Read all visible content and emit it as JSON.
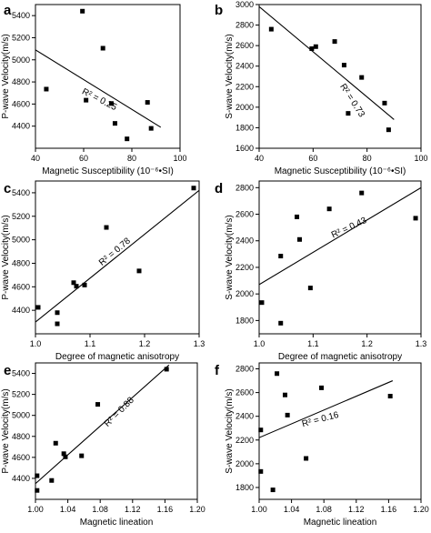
{
  "chart_data": [
    {
      "type": "scatter",
      "panel_label": "a",
      "xlabel": "Magnetic Susceptibility (10⁻⁶•SI)",
      "ylabel": "P-wave Velocity(m/s)",
      "xlim": [
        40,
        100
      ],
      "ylim": [
        4200,
        5500
      ],
      "xticks": [
        "40",
        "60",
        "80",
        "100"
      ],
      "yticks": [
        "4400",
        "4600",
        "4800",
        "5000",
        "5200",
        "5400"
      ],
      "points": [
        [
          44.5,
          4735
        ],
        [
          59.5,
          5440
        ],
        [
          61,
          4635
        ],
        [
          68,
          5105
        ],
        [
          71.5,
          4605
        ],
        [
          73,
          4425
        ],
        [
          78,
          4285
        ],
        [
          86.5,
          4615
        ],
        [
          88,
          4380
        ]
      ],
      "fit_line": [
        [
          40,
          5090
        ],
        [
          92,
          4390
        ]
      ],
      "annotation": "R² = 0.25"
    },
    {
      "type": "scatter",
      "panel_label": "b",
      "xlabel": "Magnetic Susceptibility (10⁻⁶•SI)",
      "ylabel": "S-wave Velocity(m/s)",
      "xlim": [
        40,
        100
      ],
      "ylim": [
        1600,
        3000
      ],
      "xticks": [
        "40",
        "60",
        "80",
        "100"
      ],
      "yticks": [
        "1600",
        "1800",
        "2000",
        "2200",
        "2400",
        "2600",
        "2800",
        "3000"
      ],
      "points": [
        [
          44.5,
          2760
        ],
        [
          59.5,
          2570
        ],
        [
          61,
          2590
        ],
        [
          68,
          2640
        ],
        [
          71.5,
          2410
        ],
        [
          73,
          1940
        ],
        [
          78,
          2290
        ],
        [
          86.5,
          2040
        ],
        [
          88,
          1780
        ]
      ],
      "fit_line": [
        [
          40,
          2980
        ],
        [
          90,
          1880
        ]
      ],
      "annotation": "R² = 0.73"
    },
    {
      "type": "scatter",
      "panel_label": "c",
      "xlabel": "Degree of magnetic anisotropy",
      "ylabel": "P-wave Velocity(m/s)",
      "xlim": [
        1.0,
        1.3
      ],
      "ylim": [
        4200,
        5500
      ],
      "xticks": [
        "1.0",
        "1.1",
        "1.2",
        "1.3"
      ],
      "yticks": [
        "4400",
        "4600",
        "4800",
        "5000",
        "5200",
        "5400"
      ],
      "points": [
        [
          1.005,
          4425
        ],
        [
          1.04,
          4380
        ],
        [
          1.04,
          4285
        ],
        [
          1.07,
          4635
        ],
        [
          1.075,
          4605
        ],
        [
          1.09,
          4615
        ],
        [
          1.13,
          5105
        ],
        [
          1.19,
          4735
        ],
        [
          1.29,
          5440
        ]
      ],
      "fit_line": [
        [
          1.0,
          4300
        ],
        [
          1.3,
          5420
        ]
      ],
      "annotation": "R² = 0.78"
    },
    {
      "type": "scatter",
      "panel_label": "d",
      "xlabel": "Degree of magnetic anisotropy",
      "ylabel": "S-wave Velocity(m/s)",
      "xlim": [
        1.0,
        1.3
      ],
      "ylim": [
        1700,
        2850
      ],
      "xticks": [
        "1.0",
        "1.1",
        "1.2",
        "1.3"
      ],
      "yticks": [
        "1800",
        "2000",
        "2200",
        "2400",
        "2600",
        "2800"
      ],
      "points": [
        [
          1.005,
          1935
        ],
        [
          1.04,
          2285
        ],
        [
          1.04,
          1780
        ],
        [
          1.07,
          2580
        ],
        [
          1.075,
          2410
        ],
        [
          1.095,
          2045
        ],
        [
          1.13,
          2640
        ],
        [
          1.19,
          2760
        ],
        [
          1.29,
          2570
        ]
      ],
      "fit_line": [
        [
          1.0,
          2070
        ],
        [
          1.3,
          2800
        ]
      ],
      "annotation": "R² = 0.43"
    },
    {
      "type": "scatter",
      "panel_label": "e",
      "xlabel": "Magnetic lineation",
      "ylabel": "P-wave Velocity(m/s)",
      "xlim": [
        1.0,
        1.2
      ],
      "ylim": [
        4200,
        5500
      ],
      "xticks": [
        "1.00",
        "1.04",
        "1.08",
        "1.12",
        "1.16",
        "1.20"
      ],
      "yticks": [
        "4400",
        "4600",
        "4800",
        "5000",
        "5200",
        "5400"
      ],
      "points": [
        [
          1.002,
          4425
        ],
        [
          1.002,
          4285
        ],
        [
          1.02,
          4380
        ],
        [
          1.025,
          4735
        ],
        [
          1.035,
          4635
        ],
        [
          1.037,
          4605
        ],
        [
          1.057,
          4615
        ],
        [
          1.077,
          5105
        ],
        [
          1.162,
          5440
        ]
      ],
      "fit_line": [
        [
          1.0,
          4350
        ],
        [
          1.165,
          5480
        ]
      ],
      "annotation": "R² = 0.88"
    },
    {
      "type": "scatter",
      "panel_label": "f",
      "xlabel": "Magnetic lineation",
      "ylabel": "S-wave Velocity(m/s)",
      "xlim": [
        1.0,
        1.2
      ],
      "ylim": [
        1700,
        2850
      ],
      "xticks": [
        "1.00",
        "1.04",
        "1.08",
        "1.12",
        "1.16",
        "1.20"
      ],
      "yticks": [
        "1800",
        "2000",
        "2200",
        "2400",
        "2600",
        "2800"
      ],
      "points": [
        [
          1.002,
          2285
        ],
        [
          1.002,
          1935
        ],
        [
          1.017,
          1780
        ],
        [
          1.022,
          2760
        ],
        [
          1.032,
          2580
        ],
        [
          1.035,
          2410
        ],
        [
          1.058,
          2045
        ],
        [
          1.077,
          2640
        ],
        [
          1.162,
          2570
        ]
      ],
      "fit_line": [
        [
          1.0,
          2220
        ],
        [
          1.165,
          2700
        ]
      ],
      "annotation": "R² = 0.16"
    }
  ]
}
